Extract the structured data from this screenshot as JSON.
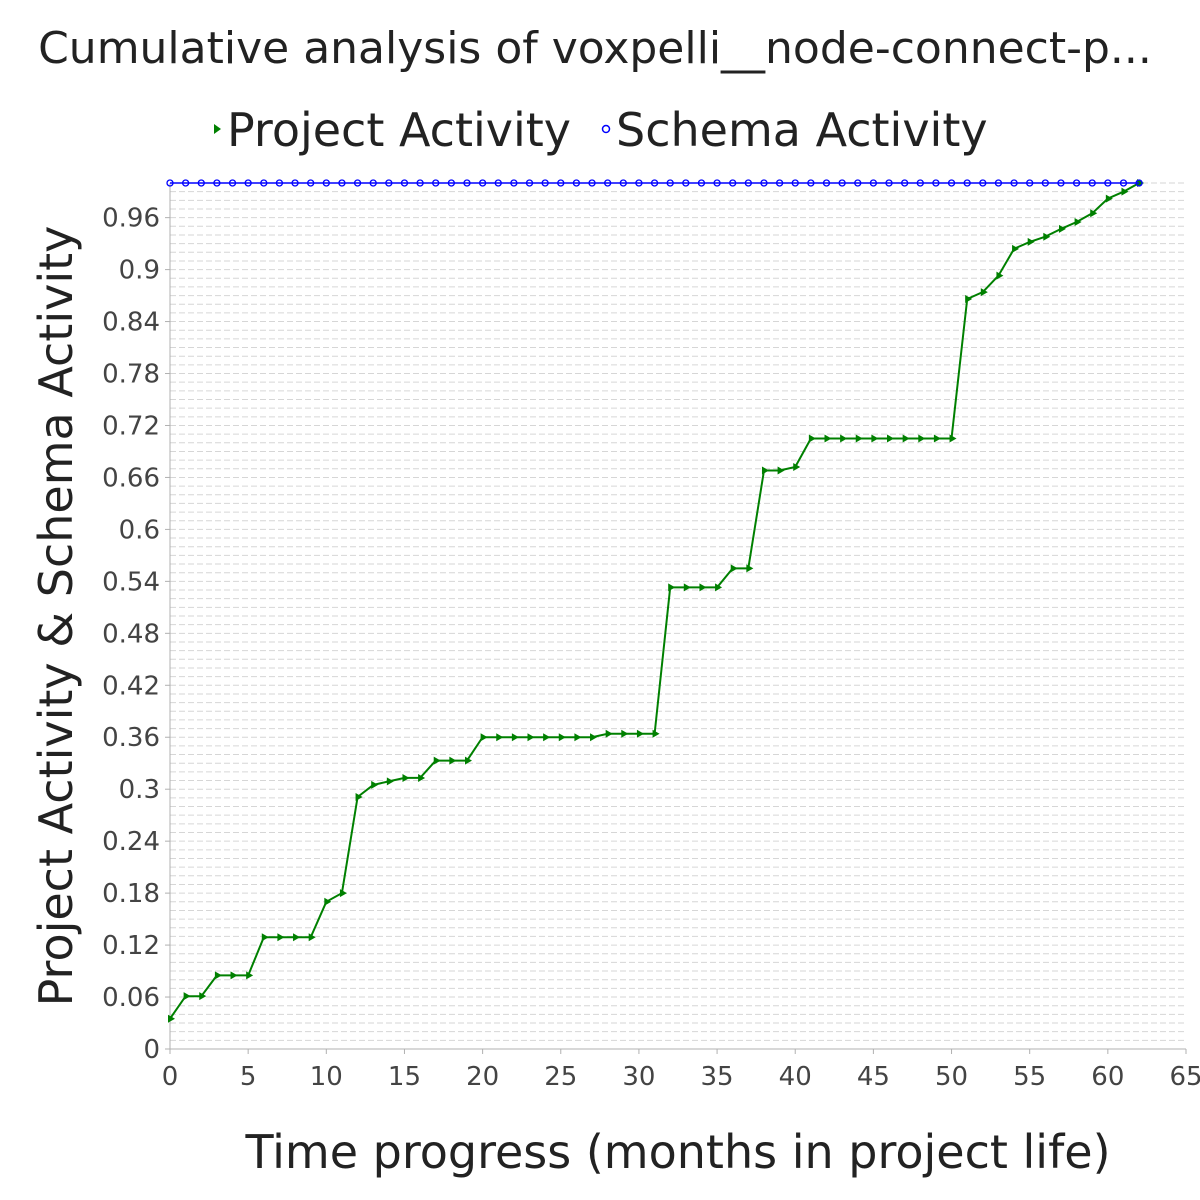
{
  "chart_data": {
    "type": "line",
    "title": "Cumulative analysis of voxpelli__node-connect-p...",
    "xlabel": "Time progress (months in project life)",
    "ylabel": "Project Activity & Schema Activity",
    "xlim": [
      0,
      65
    ],
    "ylim": [
      0,
      1.0
    ],
    "xticks": [
      "0",
      "5",
      "10",
      "15",
      "20",
      "25",
      "30",
      "35",
      "40",
      "45",
      "50",
      "55",
      "60",
      "65"
    ],
    "yticks": [
      "0",
      "0.06",
      "0.12",
      "0.18",
      "0.24",
      "0.3",
      "0.36",
      "0.42",
      "0.48",
      "0.54",
      "0.6",
      "0.66",
      "0.72",
      "0.78",
      "0.84",
      "0.9",
      "0.96"
    ],
    "grid": true,
    "legend_position": "top",
    "series": [
      {
        "name": "Project Activity",
        "color": "#008000",
        "marker": "triangle-right",
        "x": [
          0,
          1,
          2,
          3,
          4,
          5,
          6,
          7,
          8,
          9,
          10,
          11,
          12,
          13,
          14,
          15,
          16,
          17,
          18,
          19,
          20,
          21,
          22,
          23,
          24,
          25,
          26,
          27,
          28,
          29,
          30,
          31,
          32,
          33,
          34,
          35,
          36,
          37,
          38,
          39,
          40,
          41,
          42,
          43,
          44,
          45,
          46,
          47,
          48,
          49,
          50,
          51,
          52,
          53,
          54,
          55,
          56,
          57,
          58,
          59,
          60,
          61,
          62
        ],
        "y": [
          0.035,
          0.061,
          0.061,
          0.085,
          0.085,
          0.085,
          0.129,
          0.129,
          0.129,
          0.129,
          0.17,
          0.18,
          0.291,
          0.305,
          0.309,
          0.313,
          0.313,
          0.333,
          0.333,
          0.333,
          0.36,
          0.36,
          0.36,
          0.36,
          0.36,
          0.36,
          0.36,
          0.36,
          0.364,
          0.364,
          0.364,
          0.364,
          0.533,
          0.533,
          0.533,
          0.533,
          0.555,
          0.555,
          0.668,
          0.668,
          0.672,
          0.705,
          0.705,
          0.705,
          0.705,
          0.705,
          0.705,
          0.705,
          0.705,
          0.705,
          0.705,
          0.866,
          0.874,
          0.893,
          0.924,
          0.932,
          0.938,
          0.947,
          0.955,
          0.965,
          0.982,
          0.99,
          1.0
        ]
      },
      {
        "name": "Schema Activity",
        "color": "#0000ff",
        "marker": "circle",
        "x": [
          0,
          1,
          2,
          3,
          4,
          5,
          6,
          7,
          8,
          9,
          10,
          11,
          12,
          13,
          14,
          15,
          16,
          17,
          18,
          19,
          20,
          21,
          22,
          23,
          24,
          25,
          26,
          27,
          28,
          29,
          30,
          31,
          32,
          33,
          34,
          35,
          36,
          37,
          38,
          39,
          40,
          41,
          42,
          43,
          44,
          45,
          46,
          47,
          48,
          49,
          50,
          51,
          52,
          53,
          54,
          55,
          56,
          57,
          58,
          59,
          60,
          61,
          62
        ],
        "y": [
          1,
          1,
          1,
          1,
          1,
          1,
          1,
          1,
          1,
          1,
          1,
          1,
          1,
          1,
          1,
          1,
          1,
          1,
          1,
          1,
          1,
          1,
          1,
          1,
          1,
          1,
          1,
          1,
          1,
          1,
          1,
          1,
          1,
          1,
          1,
          1,
          1,
          1,
          1,
          1,
          1,
          1,
          1,
          1,
          1,
          1,
          1,
          1,
          1,
          1,
          1,
          1,
          1,
          1,
          1,
          1,
          1,
          1,
          1,
          1,
          1,
          1,
          1
        ]
      }
    ]
  }
}
